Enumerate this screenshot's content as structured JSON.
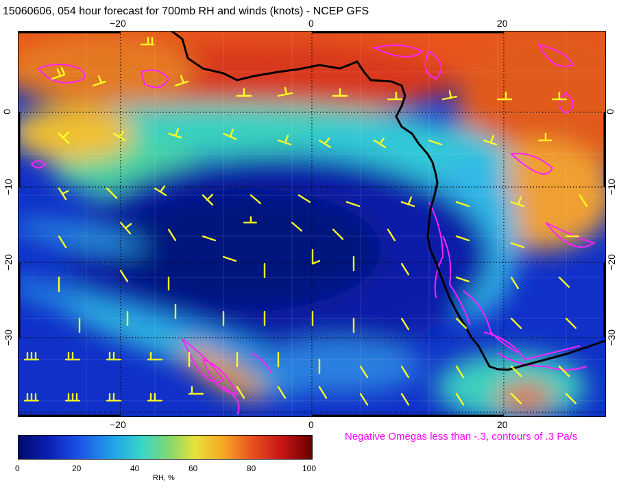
{
  "title": "15060606, 054 hour forecast for 700mb RH and winds (knots) - NCEP GFS",
  "axes": {
    "top_ticks": [
      "−20",
      "0",
      "20"
    ],
    "bottom_ticks": [
      "−20",
      "0",
      "20"
    ],
    "left_ticks": [
      "0",
      "−10",
      "−20",
      "−30"
    ],
    "right_ticks": [
      "0",
      "−10",
      "−20",
      "−30"
    ],
    "lon_range": [
      -30,
      30
    ],
    "lat_range": [
      -40,
      10
    ]
  },
  "note": "Negative Omegas less than -.3, contours of .3 Pa/s",
  "colorbar": {
    "ticks": [
      "0",
      "20",
      "40",
      "60",
      "80",
      "100"
    ],
    "label": "RH, %"
  },
  "colors": {
    "wind_barbs": "#ffff22",
    "omega_contours": "#ff00ff",
    "coastline": "#000000"
  }
}
